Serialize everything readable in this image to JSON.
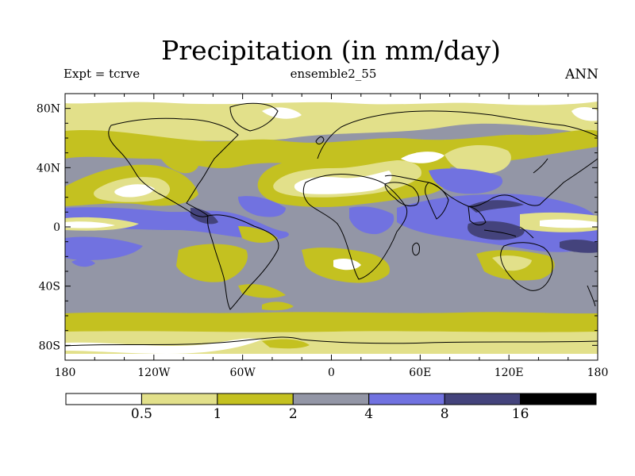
{
  "title": "Precipitation (in mm/day)",
  "subtitle_left": "Expt = tcrve",
  "subtitle_center": "ensemble2_55",
  "subtitle_right": "ANN",
  "x_ticks": [
    "180",
    "120W",
    "60W",
    "0",
    "60E",
    "120E",
    "180"
  ],
  "y_ticks": [
    "80N",
    "40N",
    "0",
    "40S",
    "80S"
  ],
  "colorbar": {
    "bins": [
      {
        "color": "#ffffff"
      },
      {
        "color": "#e2e08a",
        "label": "0.5"
      },
      {
        "color": "#c4c120",
        "label": "1"
      },
      {
        "color": "#9396a6",
        "label": "2"
      },
      {
        "color": "#7172e0",
        "label": "4"
      },
      {
        "color": "#44437c",
        "label": "8"
      },
      {
        "color": "#000000",
        "label": "16"
      }
    ]
  },
  "colors": {
    "white": "#ffffff",
    "light_yellow": "#e2e08a",
    "olive": "#c4c120",
    "gray": "#9396a6",
    "blue": "#7172e0",
    "dark_blue": "#44437c",
    "black": "#000000"
  },
  "chart_data": {
    "type": "heatmap",
    "title": "Precipitation (in mm/day)",
    "xlim": [
      -180,
      180
    ],
    "ylim": [
      -90,
      90
    ],
    "levels": [
      0.5,
      1,
      2,
      4,
      8,
      16
    ],
    "legend_placement": "bottom"
  }
}
